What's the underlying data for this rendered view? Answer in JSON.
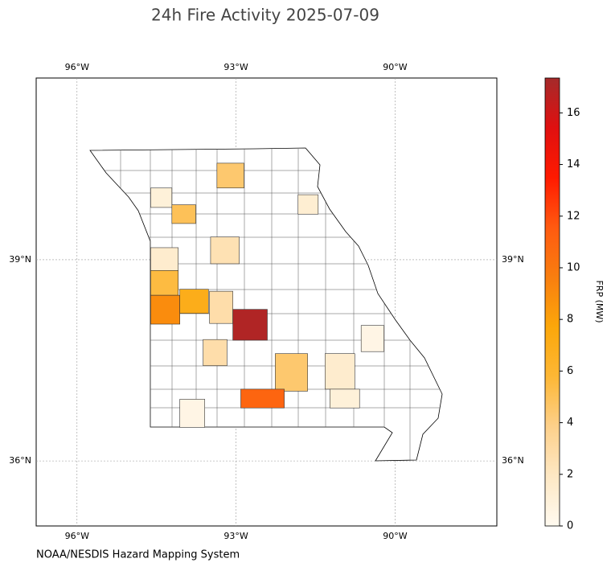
{
  "chart_data": {
    "type": "choropleth",
    "title": "24h Fire Activity 2025-07-09",
    "credit": "NOAA/NESDIS Hazard Mapping System",
    "xlim": [
      -96.77,
      -88.08
    ],
    "ylim": [
      35.03,
      41.71
    ],
    "xticks": [
      {
        "value": -96,
        "label": "96°W"
      },
      {
        "value": -93,
        "label": "93°W"
      },
      {
        "value": -90,
        "label": "90°W"
      }
    ],
    "yticks": [
      {
        "value": 36,
        "label": "36°N"
      },
      {
        "value": 39,
        "label": "39°N"
      }
    ],
    "grid": true,
    "colorbar": {
      "label": "FRP (MW)",
      "lim": [
        0,
        17.35
      ],
      "ticks": [
        0,
        2,
        4,
        6,
        8,
        10,
        12,
        14,
        16
      ],
      "colormap": [
        "#fffaf0",
        "#fee8c4",
        "#fdd08a",
        "#fdb735",
        "#fca70a",
        "#f97e0f",
        "#ff5a10",
        "#ff1a00",
        "#e01010",
        "#a52a2a"
      ]
    },
    "regions": [
      {
        "lon": [
          -93.36,
          -92.85
        ],
        "lat": [
          40.07,
          40.44
        ],
        "frp": 4.5
      },
      {
        "lon": [
          -94.61,
          -94.21
        ],
        "lat": [
          39.78,
          40.07
        ],
        "frp": 1
      },
      {
        "lon": [
          -94.21,
          -93.76
        ],
        "lat": [
          39.54,
          39.82
        ],
        "frp": 5
      },
      {
        "lon": [
          -91.83,
          -91.45
        ],
        "lat": [
          39.68,
          39.97
        ],
        "frp": 1.3
      },
      {
        "lon": [
          -93.48,
          -92.94
        ],
        "lat": [
          38.94,
          39.34
        ],
        "frp": 2.5
      },
      {
        "lon": [
          -94.61,
          -94.09
        ],
        "lat": [
          38.84,
          39.18
        ],
        "frp": 1.5
      },
      {
        "lon": [
          -94.61,
          -94.09
        ],
        "lat": [
          38.47,
          38.84
        ],
        "frp": 5.5
      },
      {
        "lon": [
          -94.61,
          -94.06
        ],
        "lat": [
          38.04,
          38.47
        ],
        "frp": 9
      },
      {
        "lon": [
          -94.06,
          -93.52
        ],
        "lat": [
          38.2,
          38.56
        ],
        "frp": 7
      },
      {
        "lon": [
          -93.5,
          -93.06
        ],
        "lat": [
          38.05,
          38.53
        ],
        "frp": 2.8
      },
      {
        "lon": [
          -93.06,
          -92.41
        ],
        "lat": [
          37.8,
          38.26
        ],
        "frp": 17
      },
      {
        "lon": [
          -93.62,
          -93.17
        ],
        "lat": [
          37.42,
          37.81
        ],
        "frp": 2.8
      },
      {
        "lon": [
          -92.26,
          -91.65
        ],
        "lat": [
          37.04,
          37.6
        ],
        "frp": 4.5
      },
      {
        "lon": [
          -91.32,
          -90.76
        ],
        "lat": [
          37.07,
          37.6
        ],
        "frp": 1.5
      },
      {
        "lon": [
          -90.64,
          -90.21
        ],
        "lat": [
          37.63,
          38.02
        ],
        "frp": 0.5
      },
      {
        "lon": [
          -92.91,
          -92.09
        ],
        "lat": [
          36.79,
          37.07
        ],
        "frp": 11
      },
      {
        "lon": [
          -91.23,
          -90.67
        ],
        "lat": [
          36.79,
          37.07
        ],
        "frp": 1
      },
      {
        "lon": [
          -94.06,
          -93.59
        ],
        "lat": [
          36.5,
          36.92
        ],
        "frp": 0.5
      }
    ]
  }
}
